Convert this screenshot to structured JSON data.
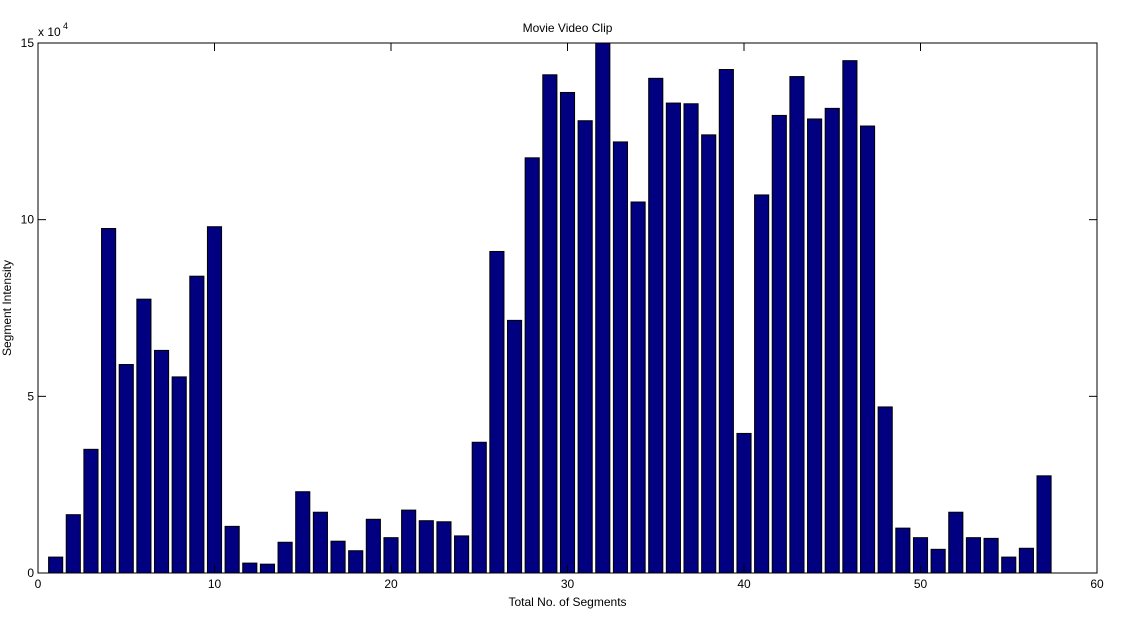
{
  "chart_data": {
    "type": "bar",
    "title": "Movie Video Clip",
    "xlabel": "Total No. of Segments",
    "ylabel": "Segment Intensity",
    "y_exponent_label": {
      "base": "x 10",
      "exponent": "4"
    },
    "xlim": [
      0,
      60
    ],
    "ylim": [
      0,
      15
    ],
    "x_ticks": [
      0,
      10,
      20,
      30,
      40,
      50,
      60
    ],
    "y_ticks": [
      0,
      5,
      10,
      15
    ],
    "x_tick_labels": [
      "0",
      "10",
      "20",
      "30",
      "40",
      "50",
      "60"
    ],
    "y_tick_labels": [
      "0",
      "5",
      "10",
      "15"
    ],
    "grid": false,
    "bar_color": "#000080",
    "x": [
      1,
      2,
      3,
      4,
      5,
      6,
      7,
      8,
      9,
      10,
      11,
      12,
      13,
      14,
      15,
      16,
      17,
      18,
      19,
      20,
      21,
      22,
      23,
      24,
      25,
      26,
      27,
      28,
      29,
      30,
      31,
      32,
      33,
      34,
      35,
      36,
      37,
      38,
      39,
      40,
      41,
      42,
      43,
      44,
      45,
      46,
      47,
      48,
      49,
      50,
      51,
      52,
      53,
      54,
      55,
      56,
      57
    ],
    "values": [
      0.45,
      1.65,
      3.5,
      9.75,
      5.9,
      7.75,
      6.3,
      5.55,
      8.4,
      9.8,
      1.32,
      0.28,
      0.25,
      0.87,
      2.3,
      1.72,
      0.9,
      0.63,
      1.52,
      1.0,
      1.78,
      1.48,
      1.45,
      1.05,
      3.7,
      9.1,
      7.15,
      11.75,
      14.1,
      13.6,
      12.8,
      15.0,
      12.2,
      10.5,
      14.0,
      13.3,
      13.28,
      12.4,
      14.25,
      3.95,
      10.7,
      12.95,
      14.05,
      12.85,
      13.15,
      14.5,
      12.65,
      4.7,
      1.27,
      1.0,
      0.67,
      1.72,
      1.0,
      0.98,
      0.45,
      0.7,
      2.75
    ]
  }
}
